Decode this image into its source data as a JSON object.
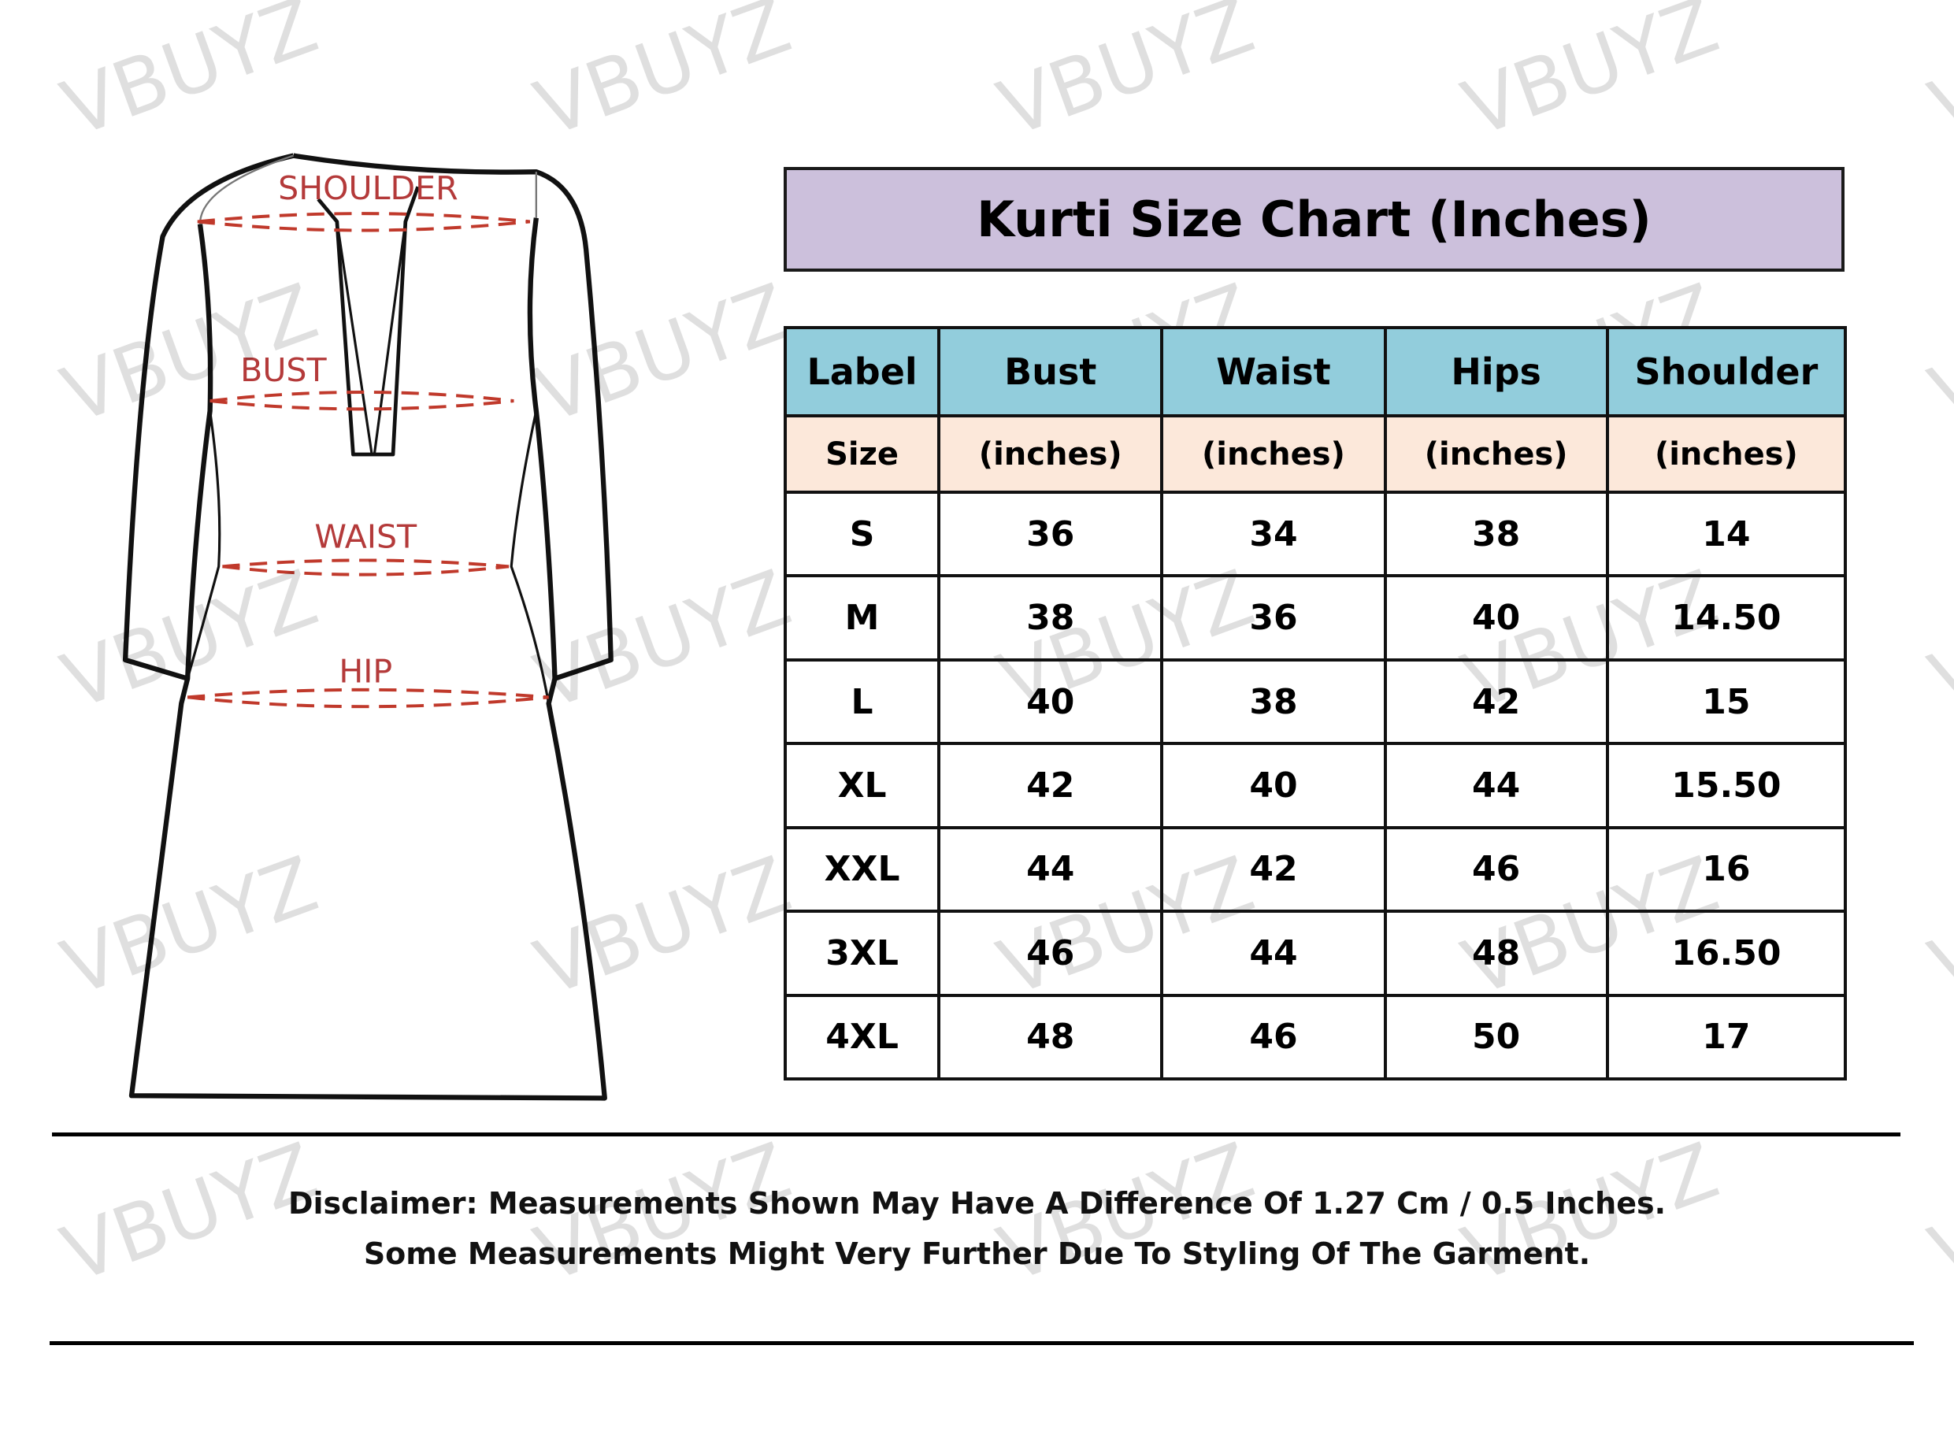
{
  "watermark": "VBUYZ",
  "diagram": {
    "labels": {
      "shoulder": "SHOULDER",
      "bust": "BUST",
      "waist": "WAIST",
      "hip": "HIP"
    },
    "measure_color": "#c0392b"
  },
  "title": "Kurti Size Chart (Inches)",
  "colors": {
    "title_bg": "#ccc0dc",
    "header_bg": "#92cddc",
    "units_bg": "#fce8da"
  },
  "table": {
    "headers": [
      "Label",
      "Bust",
      "Waist",
      "Hips",
      "Shoulder"
    ],
    "units": [
      "Size",
      "(inches)",
      "(inches)",
      "(inches)",
      "(inches)"
    ],
    "rows": [
      [
        "S",
        "36",
        "34",
        "38",
        "14"
      ],
      [
        "M",
        "38",
        "36",
        "40",
        "14.50"
      ],
      [
        "L",
        "40",
        "38",
        "42",
        "15"
      ],
      [
        "XL",
        "42",
        "40",
        "44",
        "15.50"
      ],
      [
        "XXL",
        "44",
        "42",
        "46",
        "16"
      ],
      [
        "3XL",
        "46",
        "44",
        "48",
        "16.50"
      ],
      [
        "4XL",
        "48",
        "46",
        "50",
        "17"
      ]
    ]
  },
  "disclaimer": {
    "line1": "Disclaimer: Measurements Shown May Have A Difference Of 1.27 Cm / 0.5 Inches.",
    "line2": "Some Measurements Might Very Further Due To Styling Of The Garment."
  }
}
